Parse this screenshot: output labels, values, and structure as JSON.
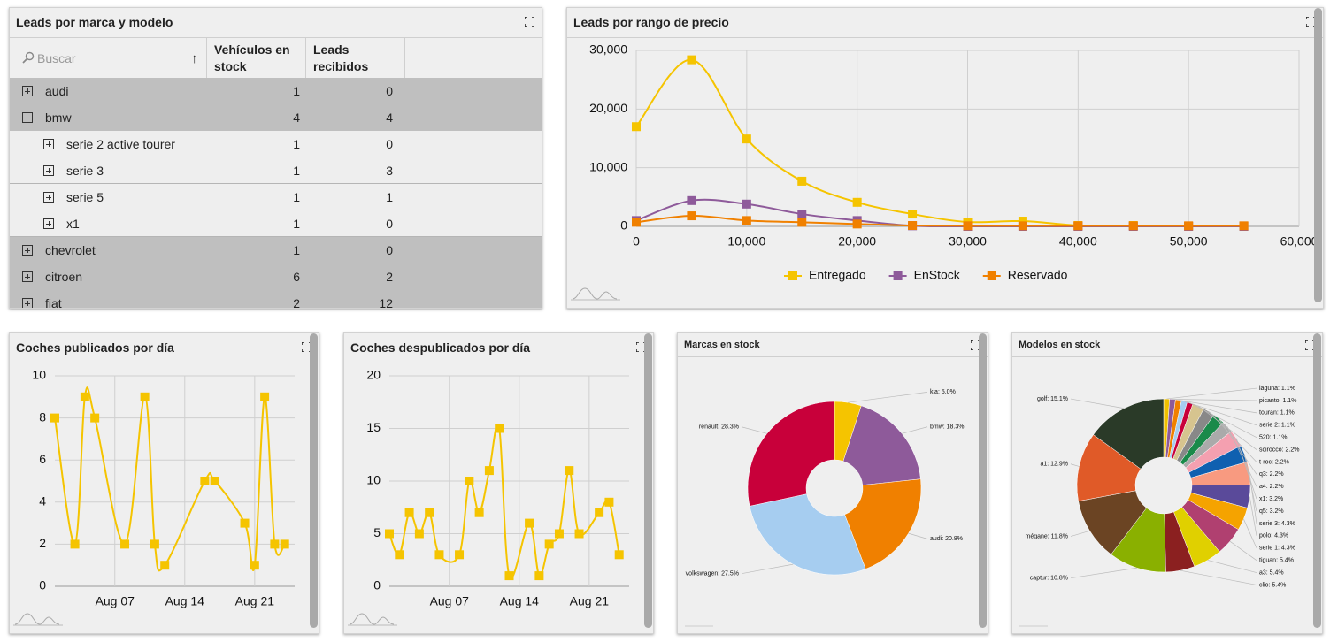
{
  "table": {
    "title": "Leads por marca y modelo",
    "search_placeholder": "Buscar",
    "sort_icon": "↑",
    "columns": [
      "Vehículos en stock",
      "Leads recibidos"
    ],
    "rows": [
      {
        "name": "audi",
        "stock": 1,
        "leads": 0
      },
      {
        "name": "bmw",
        "stock": 4,
        "leads": 4,
        "models": [
          {
            "name": "serie 2 active tourer",
            "stock": 1,
            "leads": 0
          },
          {
            "name": "serie 3",
            "stock": 1,
            "leads": 3
          },
          {
            "name": "serie 5",
            "stock": 1,
            "leads": 1
          },
          {
            "name": "x1",
            "stock": 1,
            "leads": 0
          }
        ]
      },
      {
        "name": "chevrolet",
        "stock": 1,
        "leads": 0
      },
      {
        "name": "citroen",
        "stock": 6,
        "leads": 2
      },
      {
        "name": "fiat",
        "stock": 2,
        "leads": 12
      }
    ]
  },
  "chart_data": [
    {
      "type": "line",
      "title": "Leads por rango de precio",
      "x": [
        0,
        5000,
        10000,
        15000,
        20000,
        25000,
        30000,
        35000,
        40000,
        45000,
        50000,
        55000
      ],
      "series": [
        {
          "name": "Entregado",
          "color": "#f5c400",
          "values": [
            17000,
            28400,
            14900,
            7700,
            4100,
            2100,
            750,
            900,
            150,
            150,
            50,
            50
          ]
        },
        {
          "name": "EnStock",
          "color": "#8e5a9a",
          "values": [
            1000,
            4400,
            3800,
            2100,
            1000,
            100,
            0,
            0,
            0,
            0,
            0,
            0
          ]
        },
        {
          "name": "Reservado",
          "color": "#f08000",
          "values": [
            700,
            1800,
            1000,
            700,
            400,
            150,
            100,
            100,
            100,
            100,
            100,
            100
          ]
        }
      ],
      "xlim": [
        0,
        60000
      ],
      "xticks": [
        0,
        {
          "value": 10000,
          "label": "10,000"
        },
        {
          "value": 20000,
          "label": "20,000"
        },
        {
          "value": 30000,
          "label": "30,000"
        },
        {
          "value": 40000,
          "label": "40,000"
        },
        {
          "value": 50000,
          "label": "50,000"
        },
        {
          "value": 60000,
          "label": "60,000"
        }
      ],
      "ylim": [
        0,
        30000
      ],
      "yticks": [
        0,
        {
          "value": 10000,
          "label": "10,000"
        },
        {
          "value": 20000,
          "label": "20,000"
        },
        {
          "value": 30000,
          "label": "30,000"
        }
      ],
      "grid": true,
      "legend": "bottom"
    },
    {
      "type": "line",
      "title": "Coches publicados por día",
      "x": [
        "Aug 01",
        "Aug 03",
        "Aug 04",
        "Aug 05",
        "Aug 08",
        "Aug 10",
        "Aug 11",
        "Aug 12",
        "Aug 16",
        "Aug 17",
        "Aug 20",
        "Aug 21",
        "Aug 22",
        "Aug 23",
        "Aug 24"
      ],
      "values": [
        8,
        2,
        9,
        8,
        2,
        9,
        2,
        1,
        5,
        5,
        3,
        1,
        9,
        2,
        2
      ],
      "color": "#f5c400",
      "xlim": [
        "Aug 01",
        "Aug 25"
      ],
      "xticks": [
        "Aug 07",
        "Aug 14",
        "Aug 21"
      ],
      "ylim": [
        0,
        10
      ],
      "yticks": [
        0,
        2,
        4,
        6,
        8,
        10
      ],
      "grid": true
    },
    {
      "type": "line",
      "title": "Coches despublicados por día",
      "x": [
        "Aug 01",
        "Aug 02",
        "Aug 03",
        "Aug 04",
        "Aug 05",
        "Aug 06",
        "Aug 08",
        "Aug 09",
        "Aug 10",
        "Aug 11",
        "Aug 12",
        "Aug 13",
        "Aug 15",
        "Aug 16",
        "Aug 17",
        "Aug 18",
        "Aug 19",
        "Aug 20",
        "Aug 22",
        "Aug 23",
        "Aug 24"
      ],
      "values": [
        5,
        3,
        7,
        5,
        7,
        3,
        3,
        10,
        7,
        11,
        15,
        1,
        6,
        1,
        4,
        5,
        11,
        5,
        7,
        8,
        3
      ],
      "color": "#f5c400",
      "xlim": [
        "Aug 01",
        "Aug 25"
      ],
      "xticks": [
        "Aug 07",
        "Aug 14",
        "Aug 21"
      ],
      "ylim": [
        0,
        20
      ],
      "yticks": [
        0,
        5,
        10,
        15,
        20
      ],
      "grid": true
    },
    {
      "type": "donut",
      "title": "Marcas en stock",
      "values": [
        5.0,
        18.3,
        20.8,
        27.5,
        28.3
      ],
      "value_labels": [
        "kia: 5.0%",
        "bmw: 18.3%",
        "audi: 20.8%",
        "volkswagen: 27.5%",
        "renault: 28.3%"
      ],
      "colors": [
        "#f5c400",
        "#8e5a9a",
        "#f08000",
        "#a6cdf0",
        "#c8003a"
      ]
    },
    {
      "type": "donut",
      "title": "Modelos en stock",
      "values": [
        1.1,
        1.1,
        1.1,
        1.1,
        1.1,
        2.2,
        2.2,
        2.2,
        2.2,
        3.2,
        3.2,
        4.3,
        4.3,
        4.3,
        5.4,
        5.4,
        5.4,
        10.8,
        11.8,
        12.9,
        15.1
      ],
      "value_labels": [
        "laguna: 1.1%",
        "picanto: 1.1%",
        "touran: 1.1%",
        "serie 2: 1.1%",
        "520: 1.1%",
        "scirocco: 2.2%",
        "t-roc: 2.2%",
        "q3: 2.2%",
        "a4: 2.2%",
        "x1: 3.2%",
        "q5: 3.2%",
        "serie 3: 4.3%",
        "polo: 4.3%",
        "serie 1: 4.3%",
        "tiguan: 5.4%",
        "a3: 5.4%",
        "clio: 5.4%",
        "captur: 10.8%",
        "mégane: 11.8%",
        "a1: 12.9%",
        "golf: 15.1%"
      ],
      "colors": [
        "#f0c000",
        "#8e5a9a",
        "#f08000",
        "#a6cdf0",
        "#c8003a",
        "#d6c48f",
        "#888888",
        "#1a8a4a",
        "#aaaaaa",
        "#f4a0b0",
        "#1060b0",
        "#f89a80",
        "#5a4a9a",
        "#f5a300",
        "#b04070",
        "#e0d000",
        "#8b2020",
        "#8ab000",
        "#6b4423",
        "#e05a28",
        "#2a3a28",
        "#f4f4f4"
      ]
    }
  ]
}
